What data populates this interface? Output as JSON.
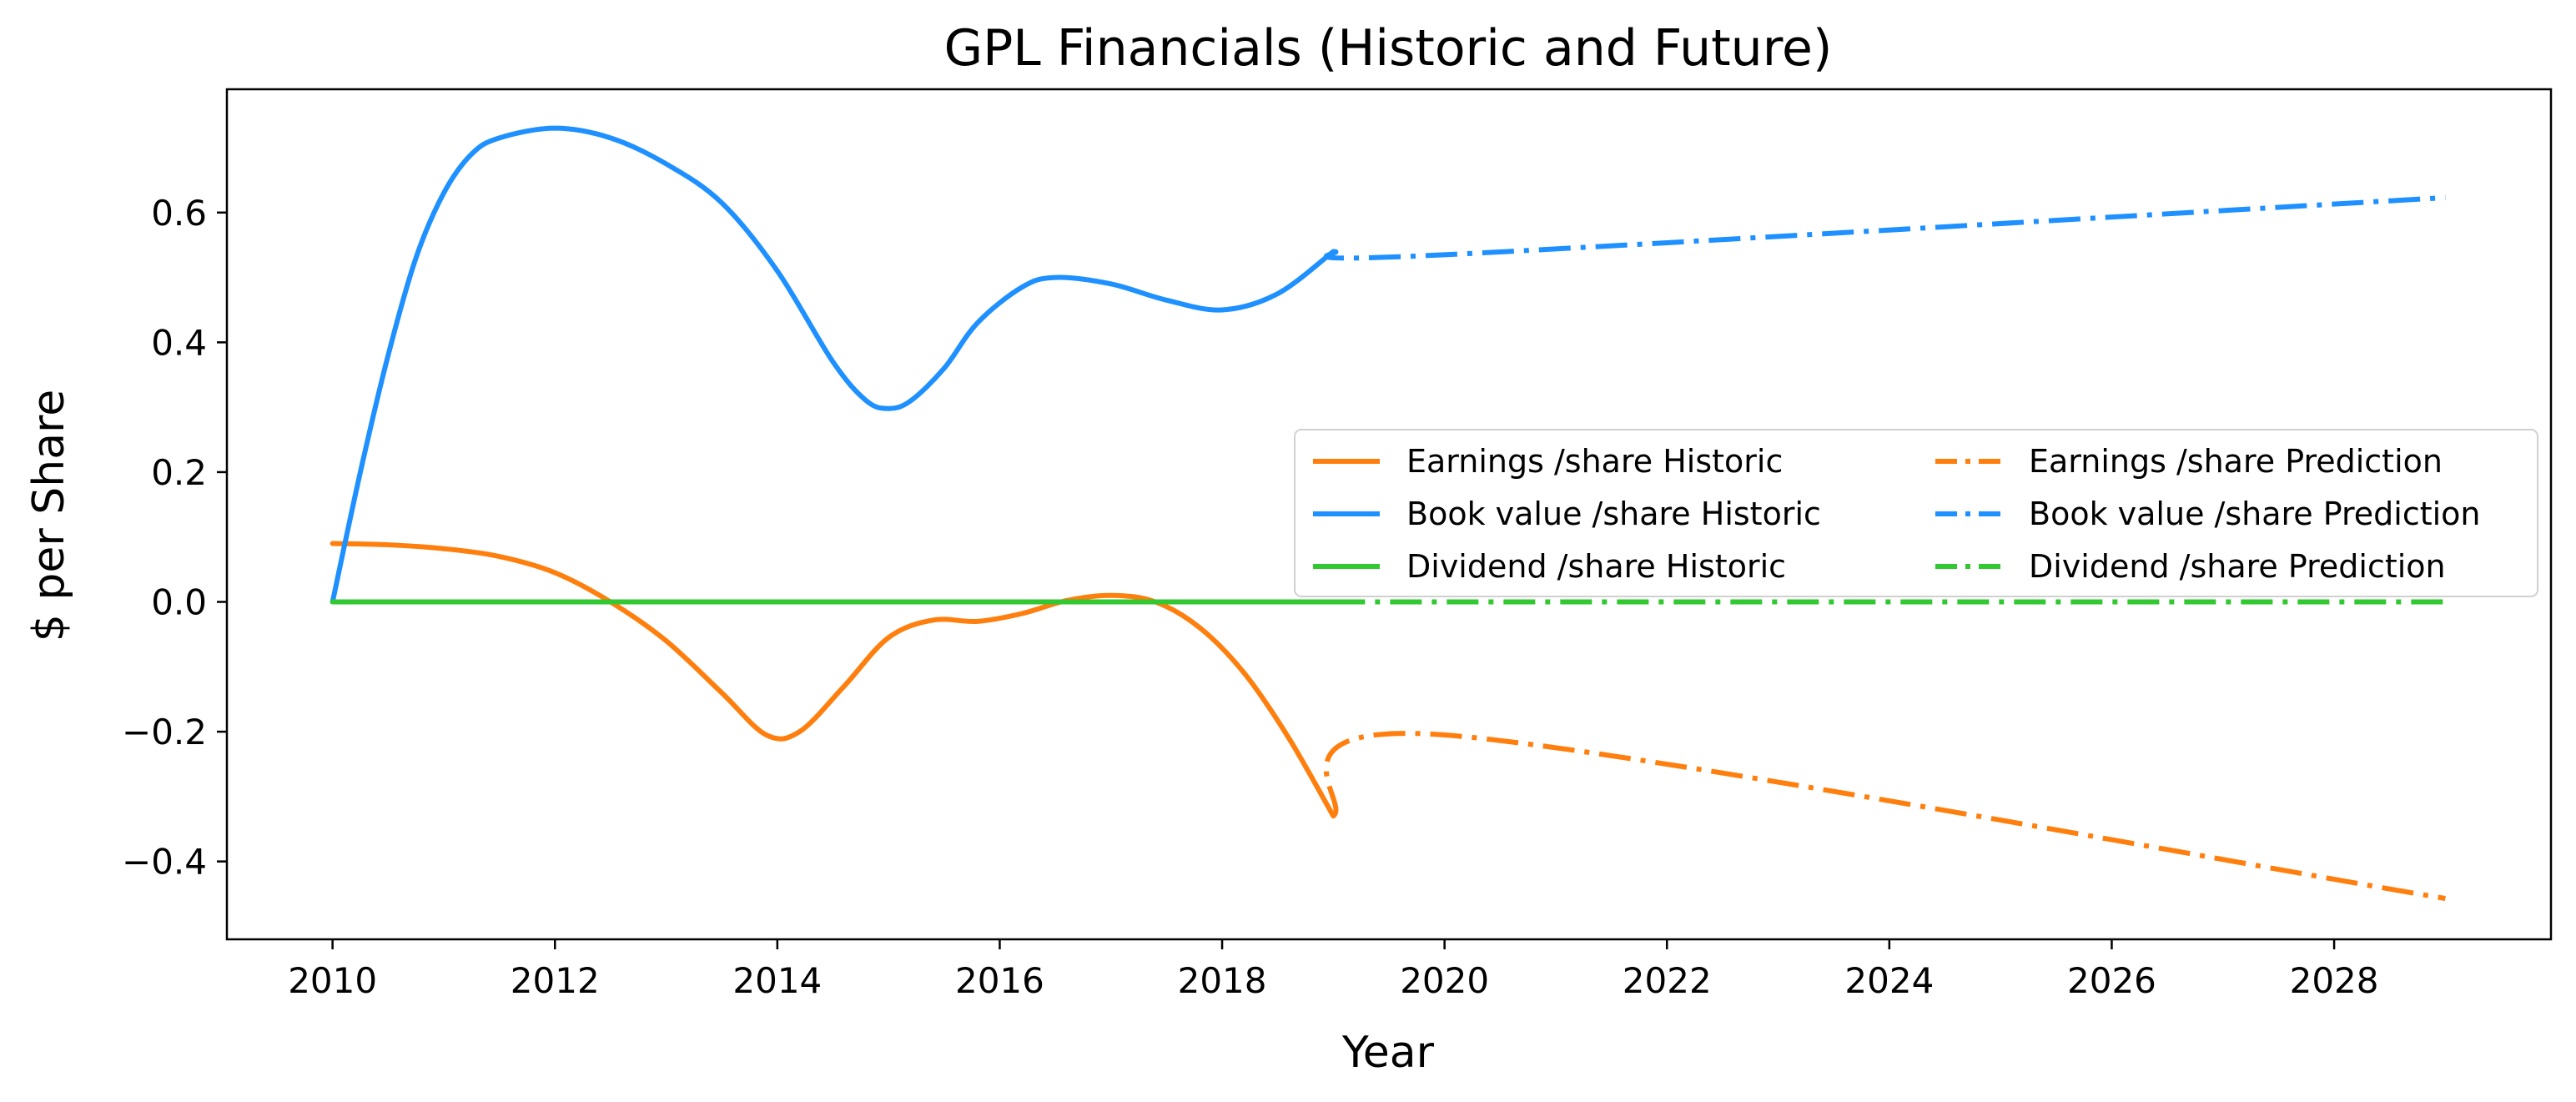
{
  "chart_data": {
    "type": "line",
    "title": "GPL Financials (Historic and Future)",
    "xlabel": "Year",
    "ylabel": "$ per Share",
    "xlim": [
      2009.05,
      2029.95
    ],
    "ylim": [
      -0.52,
      0.79
    ],
    "x_ticks": [
      2010,
      2012,
      2014,
      2016,
      2018,
      2020,
      2022,
      2024,
      2026,
      2028
    ],
    "x_tick_labels": [
      "2010",
      "2012",
      "2014",
      "2016",
      "2018",
      "2020",
      "2022",
      "2024",
      "2026",
      "2028"
    ],
    "y_ticks": [
      -0.4,
      -0.2,
      0.0,
      0.2,
      0.4,
      0.6
    ],
    "y_tick_labels": [
      "−0.4",
      "−0.2",
      "0.0",
      "0.2",
      "0.4",
      "0.6"
    ],
    "grid": false,
    "legend_position": "center-right",
    "legend_columns": 2,
    "series": [
      {
        "name": "Earnings /share Historic",
        "color": "#ff7f0e",
        "style": "solid",
        "x": [
          2010,
          2010.5,
          2011,
          2011.5,
          2012,
          2012.5,
          2013,
          2013.5,
          2013.9,
          2014.2,
          2014.6,
          2015,
          2015.4,
          2015.8,
          2016.2,
          2016.6,
          2017,
          2017.4,
          2017.8,
          2018.2,
          2018.6,
          2019
        ],
        "y": [
          0.09,
          0.088,
          0.082,
          0.07,
          0.045,
          0.0,
          -0.06,
          -0.14,
          -0.205,
          -0.2,
          -0.13,
          -0.055,
          -0.028,
          -0.03,
          -0.018,
          0.002,
          0.01,
          0.0,
          -0.04,
          -0.11,
          -0.21,
          -0.33
        ]
      },
      {
        "name": "Book value /share Historic",
        "color": "#1e90ff",
        "style": "solid",
        "x": [
          2010,
          2010.25,
          2010.5,
          2010.75,
          2011,
          2011.25,
          2011.5,
          2012,
          2012.5,
          2013,
          2013.5,
          2014,
          2014.5,
          2014.8,
          2015,
          2015.2,
          2015.5,
          2015.8,
          2016.2,
          2016.5,
          2017,
          2017.5,
          2018,
          2018.5,
          2019
        ],
        "y": [
          0.0,
          0.2,
          0.38,
          0.53,
          0.63,
          0.69,
          0.715,
          0.73,
          0.715,
          0.675,
          0.615,
          0.51,
          0.37,
          0.31,
          0.298,
          0.31,
          0.36,
          0.43,
          0.485,
          0.5,
          0.49,
          0.465,
          0.45,
          0.475,
          0.54
        ]
      },
      {
        "name": "Dividend /share Historic",
        "color": "#32c832",
        "style": "solid",
        "x": [
          2010,
          2019
        ],
        "y": [
          0.0,
          0.0
        ]
      },
      {
        "name": "Earnings /share Prediction",
        "color": "#ff7f0e",
        "style": "dashdot",
        "x": [
          2019,
          2020,
          2029
        ],
        "y": [
          -0.33,
          -0.205,
          -0.457
        ]
      },
      {
        "name": "Book value /share Prediction",
        "color": "#1e90ff",
        "style": "dashdot",
        "x": [
          2019,
          2020,
          2029
        ],
        "y": [
          0.54,
          0.535,
          0.623
        ]
      },
      {
        "name": "Dividend /share Prediction",
        "color": "#32c832",
        "style": "dashdot",
        "x": [
          2019,
          2029
        ],
        "y": [
          0.0,
          0.0
        ]
      }
    ]
  }
}
